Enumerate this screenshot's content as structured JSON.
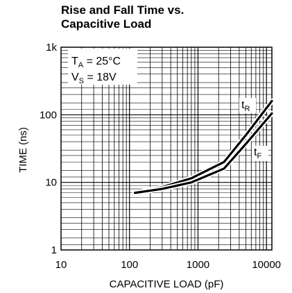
{
  "chart_data": {
    "type": "line",
    "title_lines": [
      "Rise and Fall Time vs.",
      "Capacitive Load"
    ],
    "xlabel": "CAPACITIVE LOAD (pF)",
    "ylabel": "TIME (ns)",
    "xscale": "log",
    "yscale": "log",
    "xlim": [
      10,
      12000
    ],
    "ylim": [
      1,
      1000
    ],
    "x_tick_labels": [
      "10",
      "100",
      "1000",
      "10000"
    ],
    "y_tick_labels": [
      "1",
      "10",
      "100",
      "1k"
    ],
    "grid": true,
    "conditions": {
      "ta": {
        "main": "T",
        "sub": "A",
        "value": " = 25°C"
      },
      "vs": {
        "main": "V",
        "sub": "S",
        "value": " = 18V"
      }
    },
    "series": [
      {
        "name": "tR",
        "label_main": "t",
        "label_sub": "R",
        "x": [
          120,
          300,
          800,
          2400,
          5000,
          12000
        ],
        "y": [
          7,
          8.5,
          11.5,
          20,
          50,
          160
        ]
      },
      {
        "name": "tF",
        "label_main": "t",
        "label_sub": "F",
        "x": [
          120,
          300,
          800,
          2400,
          5000,
          12000
        ],
        "y": [
          7,
          8,
          10,
          16,
          37,
          105
        ]
      }
    ]
  }
}
